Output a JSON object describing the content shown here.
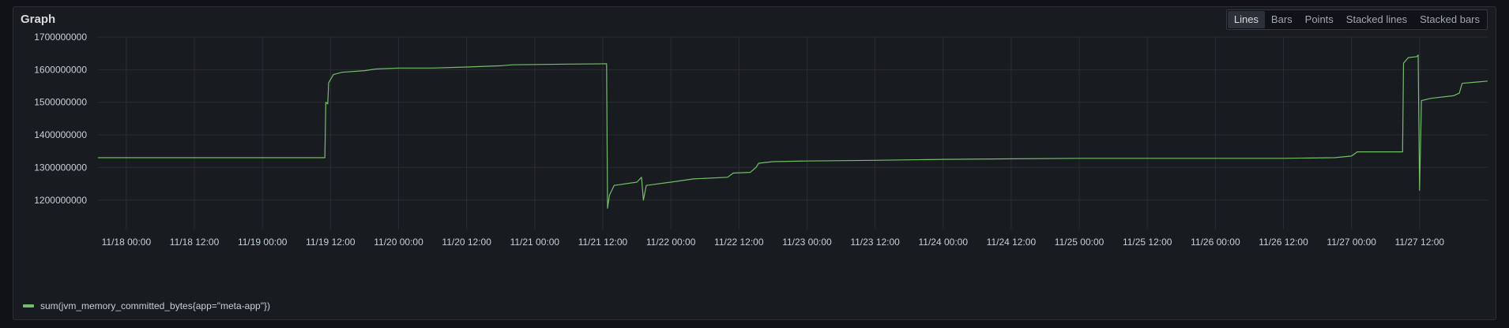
{
  "panel": {
    "title": "Graph"
  },
  "toggles": [
    {
      "label": "Lines",
      "active": true
    },
    {
      "label": "Bars",
      "active": false
    },
    {
      "label": "Points",
      "active": false
    },
    {
      "label": "Stacked lines",
      "active": false
    },
    {
      "label": "Stacked bars",
      "active": false
    }
  ],
  "colors": {
    "series": "#73bf69",
    "grid": "#2a2d33",
    "text": "#c7d0d9",
    "panel_bg": "#181b1f"
  },
  "chart_data": {
    "type": "line",
    "title": "",
    "xlabel": "",
    "ylabel": "",
    "grid": true,
    "legend_placement": "bottom-left",
    "x_ticks": [
      "11/18 00:00",
      "11/18 12:00",
      "11/19 00:00",
      "11/19 12:00",
      "11/20 00:00",
      "11/20 12:00",
      "11/21 00:00",
      "11/21 12:00",
      "11/22 00:00",
      "11/22 12:00",
      "11/23 00:00",
      "11/23 12:00",
      "11/24 00:00",
      "11/24 12:00",
      "11/25 00:00",
      "11/25 12:00",
      "11/26 00:00",
      "11/26 12:00",
      "11/27 00:00",
      "11/27 12:00"
    ],
    "y_ticks": [
      "1200000000",
      "1300000000",
      "1400000000",
      "1500000000",
      "1600000000",
      "1700000000"
    ],
    "xlim": [
      "11/17 19:00",
      "11/28 00:00"
    ],
    "ylim": [
      1110000000,
      1700000000
    ],
    "series": [
      {
        "name": "sum(jvm_memory_committed_bytes{app=\"meta-app\"})",
        "color": "#73bf69",
        "points": [
          [
            "11/17 19:00",
            1330000000
          ],
          [
            "11/19 11:00",
            1330000000
          ],
          [
            "11/19 11:10",
            1500000000
          ],
          [
            "11/19 11:30",
            1495000000
          ],
          [
            "11/19 11:40",
            1560000000
          ],
          [
            "11/19 12:30",
            1585000000
          ],
          [
            "11/19 14:00",
            1592000000
          ],
          [
            "11/19 18:00",
            1597000000
          ],
          [
            "11/19 20:00",
            1602000000
          ],
          [
            "11/20 00:00",
            1605000000
          ],
          [
            "11/20 06:00",
            1605000000
          ],
          [
            "11/20 12:00",
            1608000000
          ],
          [
            "11/20 18:00",
            1612000000
          ],
          [
            "11/20 20:00",
            1615000000
          ],
          [
            "11/21 06:00",
            1617000000
          ],
          [
            "11/21 12:40",
            1618000000
          ],
          [
            "11/21 12:50",
            1175000000
          ],
          [
            "11/21 13:10",
            1215000000
          ],
          [
            "11/21 14:00",
            1245000000
          ],
          [
            "11/21 18:00",
            1255000000
          ],
          [
            "11/21 18:50",
            1270000000
          ],
          [
            "11/21 19:10",
            1200000000
          ],
          [
            "11/21 19:40",
            1245000000
          ],
          [
            "11/22 00:00",
            1255000000
          ],
          [
            "11/22 04:00",
            1265000000
          ],
          [
            "11/22 10:00",
            1270000000
          ],
          [
            "11/22 11:00",
            1283000000
          ],
          [
            "11/22 14:00",
            1285000000
          ],
          [
            "11/22 15:00",
            1300000000
          ],
          [
            "11/22 15:30",
            1313000000
          ],
          [
            "11/22 18:00",
            1318000000
          ],
          [
            "11/23 00:00",
            1320000000
          ],
          [
            "11/23 12:00",
            1322000000
          ],
          [
            "11/24 00:00",
            1325000000
          ],
          [
            "11/25 00:00",
            1328000000
          ],
          [
            "11/26 12:00",
            1328000000
          ],
          [
            "11/26 21:00",
            1330000000
          ],
          [
            "11/27 00:00",
            1335000000
          ],
          [
            "11/27 01:00",
            1348000000
          ],
          [
            "11/27 09:00",
            1348000000
          ],
          [
            "11/27 09:10",
            1620000000
          ],
          [
            "11/27 10:00",
            1637000000
          ],
          [
            "11/27 11:30",
            1640000000
          ],
          [
            "11/27 11:45",
            1645000000
          ],
          [
            "11/27 12:00",
            1230000000
          ],
          [
            "11/27 12:20",
            1505000000
          ],
          [
            "11/27 14:00",
            1512000000
          ],
          [
            "11/27 18:00",
            1520000000
          ],
          [
            "11/27 19:00",
            1528000000
          ],
          [
            "11/27 19:30",
            1558000000
          ],
          [
            "11/27 22:00",
            1562000000
          ],
          [
            "11/28 00:00",
            1565000000
          ]
        ]
      }
    ]
  }
}
